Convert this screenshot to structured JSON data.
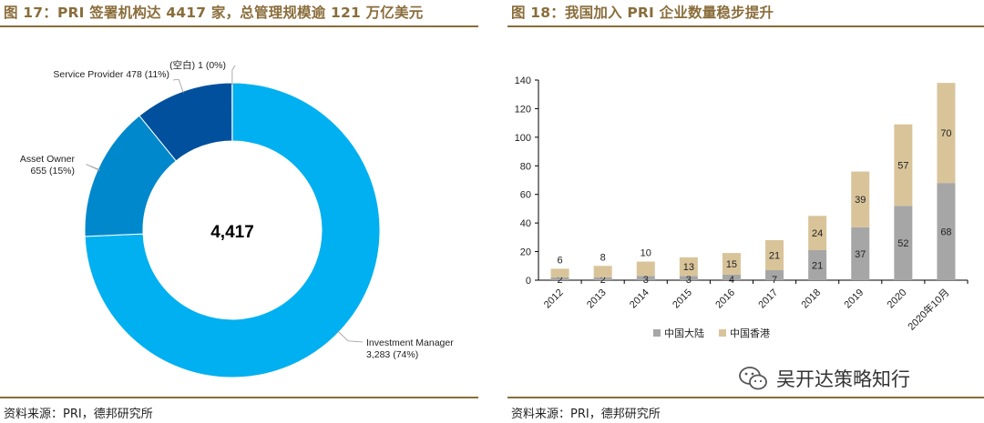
{
  "left": {
    "title": "图 17：PRI 签署机构达 4417 家，总管理规模逾 121 万亿美元",
    "source": "资料来源：PRI，德邦研究所"
  },
  "right": {
    "title": "图 18：我国加入 PRI 企业数量稳步提升",
    "source": "资料来源：PRI，德邦研究所"
  },
  "watermark": {
    "text": "吴开达策略知行",
    "icon": "wechat-icon"
  },
  "chart_data": [
    {
      "type": "pie",
      "subtype": "donut",
      "center_label": "4,417",
      "slices": [
        {
          "name": "Investment Manager",
          "value": 3283,
          "label": "Investment Manager",
          "sublabel": "3,283 (74%)",
          "color": "#00b0f0"
        },
        {
          "name": "Asset Owner",
          "value": 655,
          "label": "Asset Owner",
          "sublabel": "655 (15%)",
          "color": "#0088cc"
        },
        {
          "name": "Service Provider",
          "value": 478,
          "label": "Service Provider 478 (11%)",
          "sublabel": "",
          "color": "#00509e"
        },
        {
          "name": "(空白)",
          "value": 1,
          "label": "(空白) 1 (0%)",
          "sublabel": "",
          "color": "#003f7f"
        }
      ]
    },
    {
      "type": "bar",
      "stacked": true,
      "categories": [
        "2012",
        "2013",
        "2014",
        "2015",
        "2016",
        "2017",
        "2018",
        "2019",
        "2020",
        "2020年10月"
      ],
      "series": [
        {
          "name": "中国大陆",
          "values": [
            2,
            2,
            3,
            3,
            4,
            7,
            21,
            37,
            52,
            68
          ],
          "color": "#a6a6a6"
        },
        {
          "name": "中国香港",
          "values": [
            6,
            8,
            10,
            13,
            15,
            21,
            24,
            39,
            57,
            70
          ],
          "color": "#d9c49a"
        }
      ],
      "ylim": [
        0,
        140
      ],
      "yticks": [
        0,
        20,
        40,
        60,
        80,
        100,
        120,
        140
      ],
      "legend": "bottom",
      "grid": false
    }
  ]
}
